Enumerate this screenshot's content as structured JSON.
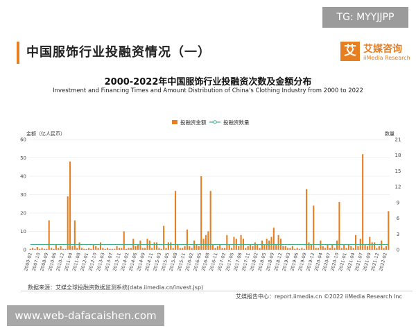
{
  "watermark_top": "TG: MYYJJPP",
  "watermark_bottom": "www.web-dafacaishen.com",
  "page_title": "中国服饰行业投融资情况（一）",
  "brand": {
    "box": "艾",
    "name_cn": "艾媒咨询",
    "name_en": "iiMedia Research"
  },
  "source": "数据来源：艾媒全球投融资数据监测系统(data.iimedia.cn/invest.jsp)",
  "footer": "艾媒报告中心：report.iimedia.cn   ©2022  iiMedia Research  Inc",
  "colors": {
    "bar": "#e67e22",
    "line": "#3fae8a",
    "accent": "#e67e22"
  },
  "chart_data": {
    "type": "bar",
    "title": "2000-2022年中国服饰行业投融资次数及金额分布",
    "subtitle": "Investment and Financing Times and Amount Distribution of China's Clothing Industry from 2000 to 2022",
    "legend_position": "top",
    "grid": true,
    "ylabel_left": "金额（亿人民币）",
    "ylabel_right": "数量",
    "ylim_left": [
      0,
      60
    ],
    "ylim_right": [
      0,
      21
    ],
    "yticks_left": [
      0,
      10,
      20,
      30,
      40,
      50,
      60
    ],
    "yticks_right": [
      0,
      3,
      6,
      9,
      12,
      15,
      18,
      21
    ],
    "xtick_labels": [
      "2000-02",
      "2007-10",
      "2008-09",
      "2010-06",
      "2010-12",
      "2011-04",
      "2011-08",
      "2012-01",
      "2012-10",
      "2013-03",
      "2013-07",
      "2013-11",
      "2014-02",
      "2014-06",
      "2014-09",
      "2014-11",
      "2015-03",
      "2015-05",
      "2015-08",
      "2015-11",
      "2016-02",
      "2016-05",
      "2016-08",
      "2016-11",
      "2017-02",
      "2017-05",
      "2017-08",
      "2017-11",
      "2018-02",
      "2018-05",
      "2018-09",
      "2018-12",
      "2019-03",
      "2019-06",
      "2019-09",
      "2019-12",
      "2020-04",
      "2020-07",
      "2020-10",
      "2021-01",
      "2021-04",
      "2021-07",
      "2021-09",
      "2021-12",
      "2022-02"
    ],
    "series": [
      {
        "name": "投融资金额",
        "type": "bar",
        "axis": "left",
        "values": [
          0.5,
          1,
          0.5,
          1.5,
          0.5,
          1,
          0.5,
          0.5,
          16,
          1,
          0.5,
          3,
          1,
          2,
          0.5,
          0.5,
          29,
          48,
          2,
          16,
          1,
          4,
          1,
          0.5,
          0.5,
          1,
          0.5,
          3,
          2,
          1,
          4,
          1,
          0.5,
          1,
          0.5,
          0.5,
          0.5,
          2,
          1,
          1,
          10,
          0.5,
          1,
          1,
          6,
          2,
          3,
          5,
          1,
          1,
          6,
          5,
          1,
          4,
          4,
          1,
          0.5,
          13,
          1,
          4,
          4,
          1,
          32,
          3,
          1,
          1,
          2,
          11,
          2,
          1,
          5,
          3,
          2,
          40,
          6,
          8,
          10,
          32,
          3,
          1,
          2,
          3,
          1,
          1,
          8,
          3,
          1,
          7,
          6,
          2,
          8,
          6,
          1,
          2,
          3,
          2,
          4,
          3,
          1,
          5,
          3,
          6,
          5,
          7,
          12,
          3,
          8,
          6,
          2,
          2,
          1,
          1,
          2,
          0.5,
          1,
          0.5,
          1,
          0.5,
          33,
          4,
          3,
          24,
          1,
          1,
          5,
          2,
          1,
          3,
          1,
          3,
          1,
          5,
          26,
          1,
          3,
          1,
          3,
          2,
          1,
          8,
          2,
          6,
          52,
          3,
          2,
          7,
          4,
          4,
          1,
          2,
          5,
          1,
          2,
          21
        ]
      },
      {
        "name": "投融资数量",
        "type": "line",
        "axis": "right",
        "values": [
          1,
          1,
          1,
          1,
          1,
          1,
          1,
          1,
          1,
          1,
          1,
          1,
          1,
          1,
          1,
          1,
          1,
          1,
          1,
          1,
          1,
          1,
          1,
          1,
          1,
          1,
          1,
          1,
          1,
          1,
          1,
          1,
          1,
          1,
          1,
          1,
          1,
          1,
          1,
          1,
          1,
          1,
          1,
          1,
          1,
          1,
          1,
          1,
          1,
          1,
          1,
          1,
          1,
          1,
          1,
          1,
          1,
          1,
          1,
          1,
          1,
          1,
          1,
          1,
          1,
          1,
          1,
          1,
          1,
          1,
          1,
          1,
          1,
          1,
          1,
          1,
          1,
          1,
          1,
          1,
          1,
          1,
          1,
          1,
          1,
          1,
          1,
          1,
          1,
          1,
          1,
          1,
          1,
          1,
          1,
          1,
          1,
          1,
          1,
          1,
          1,
          1,
          1,
          1,
          1,
          1,
          1,
          1,
          1,
          1,
          1,
          1,
          1,
          1,
          1,
          1,
          1,
          1,
          1,
          1,
          1,
          1,
          1,
          1,
          1,
          1,
          1,
          1,
          1,
          1,
          1,
          1,
          1,
          1,
          1,
          1,
          1,
          1,
          1,
          1,
          1,
          1,
          1,
          1,
          1,
          1,
          1,
          1,
          1,
          1,
          1
        ]
      }
    ]
  }
}
